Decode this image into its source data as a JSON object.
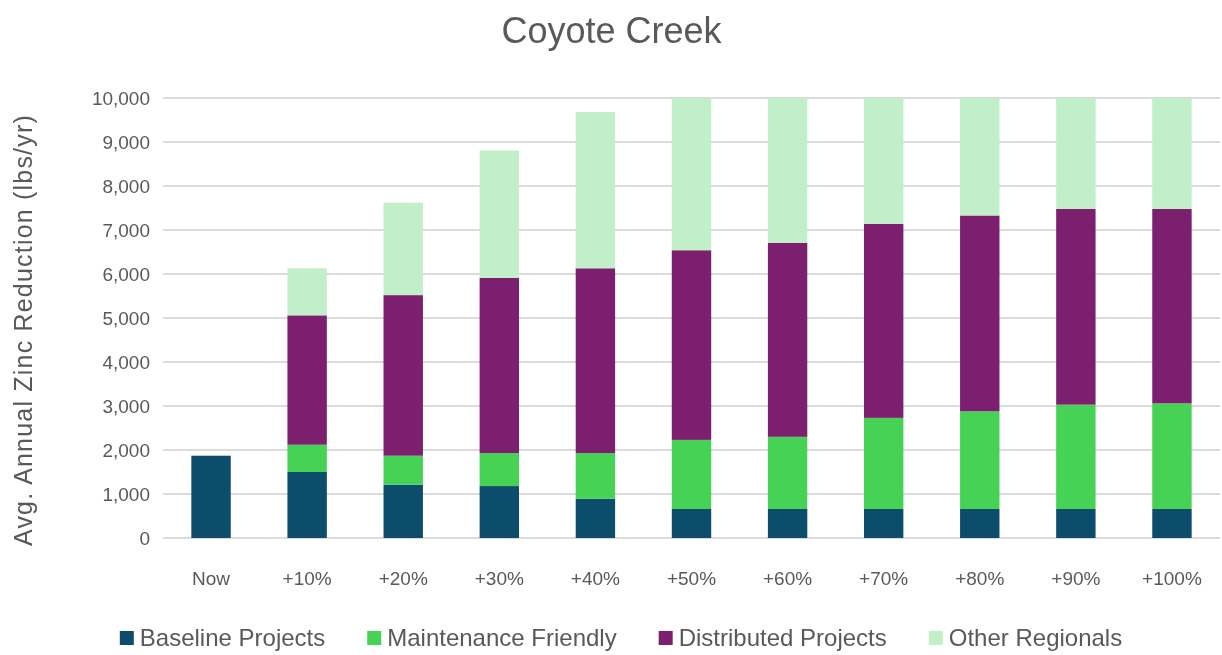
{
  "chart_data": {
    "type": "bar",
    "title": "Coyote Creek",
    "ylabel": "Avg. Annual Zinc Reduction (lbs/yr)",
    "categories": [
      "Now",
      "+10%",
      "+20%",
      "+30%",
      "+40%",
      "+50%",
      "+60%",
      "+70%",
      "+80%",
      "+90%",
      "+100%"
    ],
    "series": [
      {
        "name": "Baseline Projects",
        "color": "#0b4d6a",
        "values": [
          1870,
          1500,
          1210,
          1180,
          890,
          660,
          660,
          660,
          660,
          660,
          660
        ]
      },
      {
        "name": "Maintenance Friendly",
        "color": "#46d255",
        "values": [
          null,
          620,
          660,
          750,
          1040,
          1570,
          1640,
          2070,
          2220,
          2370,
          2400
        ]
      },
      {
        "name": "Distributed Projects",
        "color": "#7b1f6e",
        "values": [
          null,
          2940,
          3650,
          3980,
          4200,
          4310,
          4410,
          4410,
          4450,
          4450,
          4420
        ]
      },
      {
        "name": "Other Regionals",
        "color": "#c0efc8",
        "values": [
          null,
          1070,
          2100,
          2900,
          3550,
          3460,
          3290,
          2860,
          2670,
          2520,
          2520
        ]
      }
    ],
    "stacked": true,
    "ylim": [
      0,
      10000
    ],
    "yticks": [
      0,
      {
        "value": 1000,
        "label": "1,000"
      },
      {
        "value": 2000,
        "label": "2,000"
      },
      {
        "value": 3000,
        "label": "3,000"
      },
      {
        "value": 4000,
        "label": "4,000"
      },
      {
        "value": 5000,
        "label": "5,000"
      },
      {
        "value": 6000,
        "label": "6,000"
      },
      {
        "value": 7000,
        "label": "7,000"
      },
      {
        "value": 8000,
        "label": "8,000"
      },
      {
        "value": 9000,
        "label": "9,000"
      },
      {
        "value": 10000,
        "label": "10,000"
      }
    ],
    "grid": "y",
    "legend": "bottom"
  }
}
